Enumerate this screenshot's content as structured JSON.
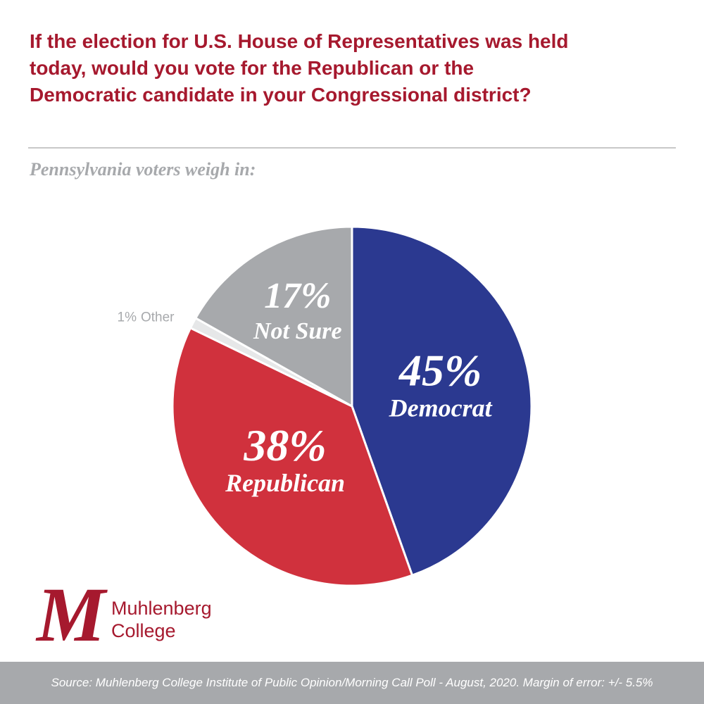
{
  "chart_data": {
    "type": "pie",
    "title": "If the election for U.S. House of Representatives was held today, would you vote for the Republican or the Democratic candidate in your Congressional district?",
    "subtitle": "Pennsylvania voters weigh in:",
    "categories": [
      "Democrat",
      "Republican",
      "Other",
      "Not Sure"
    ],
    "values": [
      45,
      38,
      1,
      17
    ],
    "value_labels": [
      "45%",
      "38%",
      "1%",
      "17%"
    ],
    "colors": [
      "#2b3990",
      "#d0313d",
      "#e6e7e8",
      "#a7a9ac"
    ]
  },
  "logo": {
    "line1": "Muhlenberg",
    "line2": "College"
  },
  "footer": "Source: Muhlenberg College Institute of Public Opinion/Morning Call Poll - August, 2020. Margin of error: +/- 5.5%"
}
